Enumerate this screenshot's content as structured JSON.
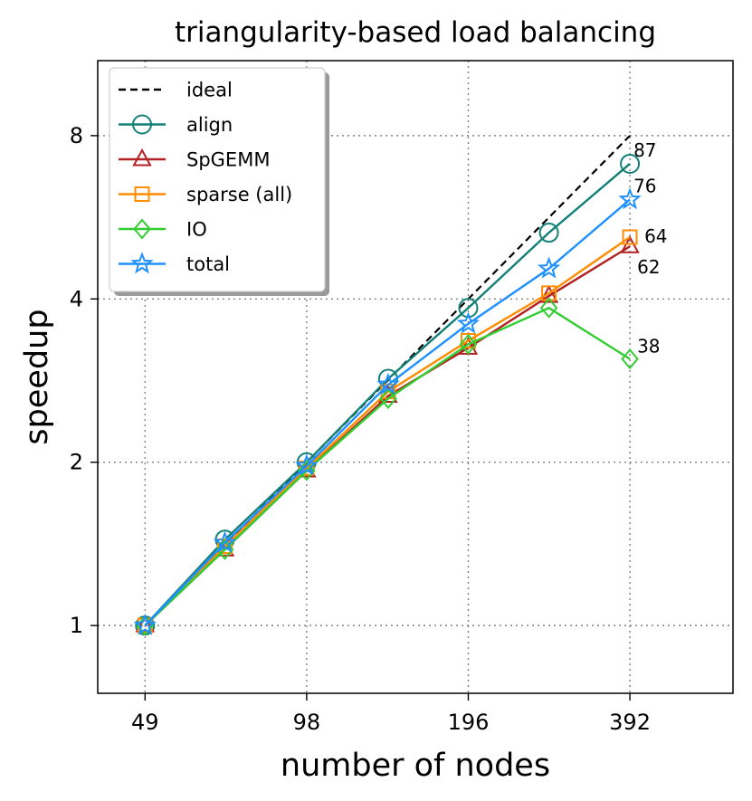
{
  "chart_data": {
    "type": "line",
    "title": "triangularity-based load balancing",
    "xlabel": "number of nodes",
    "ylabel": "speedup",
    "x_scale": "log2",
    "y_scale": "log2",
    "xlim": [
      40,
      610
    ],
    "ylim": [
      0.75,
      11.0
    ],
    "xticks": [
      49,
      98,
      196,
      392
    ],
    "xtick_labels": [
      "49",
      "98",
      "196",
      "392"
    ],
    "yticks": [
      1,
      2,
      4,
      8
    ],
    "ytick_labels": [
      "1",
      "2",
      "4",
      "8"
    ],
    "grid": true,
    "legend_position": "upper left",
    "x": [
      49,
      69,
      98,
      139,
      196,
      277,
      392
    ],
    "series": [
      {
        "name": "ideal",
        "color": "#000000",
        "marker": "none",
        "dashed": true,
        "x": [
          49,
          392
        ],
        "values": [
          1,
          8
        ]
      },
      {
        "name": "align",
        "color": "#138078",
        "marker": "circle",
        "values": [
          1.0,
          1.44,
          2.0,
          2.85,
          3.85,
          5.3,
          7.1
        ]
      },
      {
        "name": "SpGEMM",
        "color": "#b22222",
        "marker": "triangle",
        "values": [
          1.0,
          1.38,
          1.93,
          2.65,
          3.25,
          4.05,
          5.0
        ]
      },
      {
        "name": "sparse (all)",
        "color": "#ff8c00",
        "marker": "square",
        "values": [
          1.0,
          1.4,
          1.95,
          2.7,
          3.35,
          4.1,
          5.2
        ]
      },
      {
        "name": "IO",
        "color": "#32cd32",
        "marker": "diamond",
        "values": [
          1.0,
          1.38,
          1.93,
          2.62,
          3.3,
          3.85,
          3.1
        ]
      },
      {
        "name": "total",
        "color": "#1e90ff",
        "marker": "star",
        "values": [
          1.0,
          1.42,
          1.97,
          2.78,
          3.6,
          4.55,
          6.1
        ]
      }
    ],
    "annotations": [
      {
        "text": "87",
        "x": 392,
        "y": 7.1
      },
      {
        "text": "76",
        "x": 392,
        "y": 6.1
      },
      {
        "text": "64",
        "x": 392,
        "y": 5.2
      },
      {
        "text": "62",
        "x": 392,
        "y": 5.0
      },
      {
        "text": "38",
        "x": 392,
        "y": 3.1
      }
    ]
  }
}
